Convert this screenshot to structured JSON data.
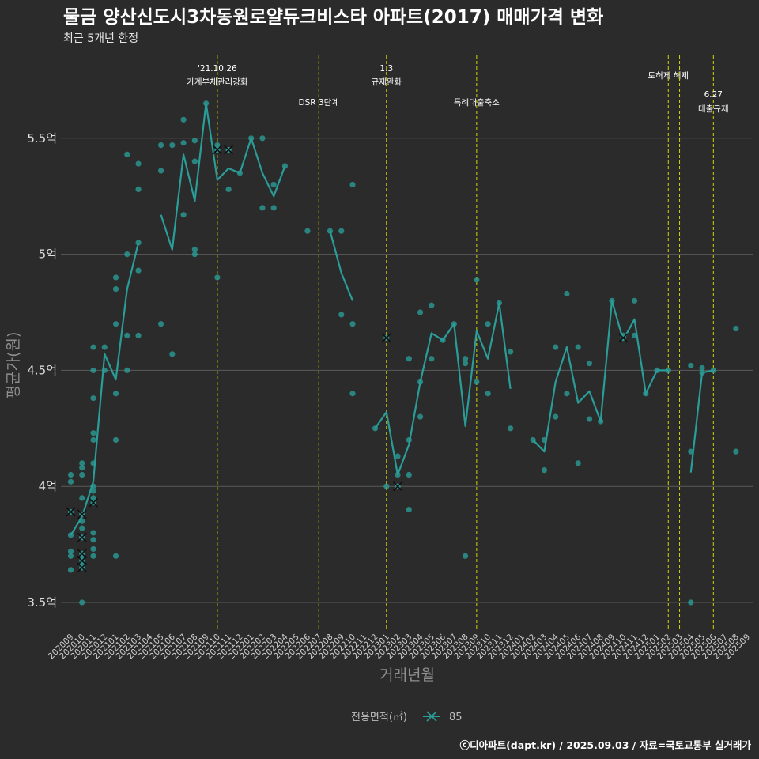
{
  "title": "물금 양산신도시3차동원로얄듀크비스타 아파트(2017) 매매가격 변화",
  "subtitle": "최근 5개년 한정",
  "caption": "ⓒ디아파트(dapt.kr) / 2025.09.03 / 자료=국토교통부 실거래가",
  "legend": {
    "title": "전용면적(㎡)",
    "label": "85"
  },
  "colors": {
    "background": "#2b2b2b",
    "series": "#2a9d99",
    "grid": "#5a5a5a",
    "event_line": "#d4d400"
  },
  "chart_data": {
    "type": "line",
    "xlabel": "거래년월",
    "ylabel": "평균가(원)",
    "ylim": [
      3.4,
      5.8
    ],
    "yticks": [
      {
        "value": 3.5,
        "label": "3.5억"
      },
      {
        "value": 4.0,
        "label": "4억"
      },
      {
        "value": 4.5,
        "label": "4.5억"
      },
      {
        "value": 5.0,
        "label": "5억"
      },
      {
        "value": 5.5,
        "label": "5.5억"
      }
    ],
    "x_categories": [
      "202009",
      "202010",
      "202011",
      "202012",
      "202101",
      "202102",
      "202103",
      "202104",
      "202105",
      "202106",
      "202107",
      "202108",
      "202109",
      "202110",
      "202111",
      "202112",
      "202201",
      "202202",
      "202203",
      "202204",
      "202205",
      "202206",
      "202207",
      "202208",
      "202209",
      "202210",
      "202211",
      "202212",
      "202301",
      "202302",
      "202303",
      "202304",
      "202305",
      "202306",
      "202307",
      "202308",
      "202309",
      "202310",
      "202311",
      "202312",
      "202401",
      "202402",
      "202403",
      "202404",
      "202405",
      "202406",
      "202407",
      "202408",
      "202409",
      "202410",
      "202411",
      "202412",
      "202501",
      "202502",
      "202503",
      "202504",
      "202505",
      "202506",
      "202507",
      "202508",
      "202509"
    ],
    "events": [
      {
        "x": "202110",
        "lines": [
          "'21.10.26",
          "가계부채관리강화"
        ]
      },
      {
        "x": "202207",
        "lines": [
          "DSR 3단계"
        ]
      },
      {
        "x": "202301",
        "lines": [
          "1.3",
          "규제완화"
        ]
      },
      {
        "x": "202309",
        "lines": [
          "특례대출축소"
        ]
      },
      {
        "x": "202502",
        "lines": [
          "토허제 해제"
        ]
      },
      {
        "x": "202503",
        "lines": []
      },
      {
        "x": "202506",
        "lines": [
          "6.27",
          "대출규제"
        ]
      }
    ],
    "series": [
      {
        "name": "85",
        "line_segments": [
          [
            [
              "202009",
              3.79
            ],
            [
              "202010",
              3.87
            ],
            [
              "202011",
              4.02
            ],
            [
              "202012",
              4.57
            ],
            [
              "202101",
              4.46
            ],
            [
              "202102",
              4.85
            ],
            [
              "202103",
              5.05
            ]
          ],
          [
            [
              "202105",
              5.17
            ],
            [
              "202106",
              5.02
            ],
            [
              "202107",
              5.43
            ],
            [
              "202108",
              5.23
            ],
            [
              "202109",
              5.65
            ],
            [
              "202110",
              5.32
            ],
            [
              "202111",
              5.37
            ],
            [
              "202112",
              5.35
            ],
            [
              "202201",
              5.5
            ],
            [
              "202202",
              5.35
            ],
            [
              "202203",
              5.25
            ],
            [
              "202204",
              5.38
            ]
          ],
          [
            [
              "202208",
              5.1
            ],
            [
              "202209",
              4.92
            ],
            [
              "202210",
              4.8
            ]
          ],
          [
            [
              "202212",
              4.25
            ],
            [
              "202301",
              4.32
            ],
            [
              "202302",
              4.05
            ],
            [
              "202303",
              4.18
            ],
            [
              "202304",
              4.45
            ],
            [
              "202305",
              4.66
            ],
            [
              "202306",
              4.63
            ],
            [
              "202307",
              4.7
            ],
            [
              "202308",
              4.26
            ],
            [
              "202309",
              4.67
            ],
            [
              "202310",
              4.55
            ],
            [
              "202311",
              4.79
            ],
            [
              "202312",
              4.42
            ]
          ],
          [
            [
              "202402",
              4.2
            ],
            [
              "202403",
              4.15
            ],
            [
              "202404",
              4.45
            ],
            [
              "202405",
              4.6
            ],
            [
              "202406",
              4.36
            ],
            [
              "202407",
              4.41
            ],
            [
              "202408",
              4.28
            ],
            [
              "202409",
              4.8
            ],
            [
              "202410",
              4.63
            ],
            [
              "202411",
              4.72
            ],
            [
              "202412",
              4.4
            ],
            [
              "202501",
              4.5
            ],
            [
              "202502",
              4.5
            ]
          ],
          [
            [
              "202504",
              4.06
            ],
            [
              "202505",
              4.49
            ],
            [
              "202506",
              4.5
            ]
          ]
        ],
        "points": [
          [
            "202009",
            4.05
          ],
          [
            "202009",
            4.02
          ],
          [
            "202009",
            3.79
          ],
          [
            "202009",
            3.72
          ],
          [
            "202009",
            3.7
          ],
          [
            "202009",
            3.64
          ],
          [
            "202010",
            4.1
          ],
          [
            "202010",
            4.08
          ],
          [
            "202010",
            4.05
          ],
          [
            "202010",
            3.95
          ],
          [
            "202010",
            3.85
          ],
          [
            "202010",
            3.82
          ],
          [
            "202010",
            3.78
          ],
          [
            "202010",
            3.7
          ],
          [
            "202010",
            3.67
          ],
          [
            "202010",
            3.5
          ],
          [
            "202011",
            4.6
          ],
          [
            "202011",
            4.5
          ],
          [
            "202011",
            4.38
          ],
          [
            "202011",
            4.23
          ],
          [
            "202011",
            4.2
          ],
          [
            "202011",
            4.1
          ],
          [
            "202011",
            4.0
          ],
          [
            "202011",
            3.98
          ],
          [
            "202011",
            3.95
          ],
          [
            "202011",
            3.8
          ],
          [
            "202011",
            3.77
          ],
          [
            "202011",
            3.73
          ],
          [
            "202011",
            3.7
          ],
          [
            "202012",
            4.6
          ],
          [
            "202012",
            4.5
          ],
          [
            "202101",
            4.9
          ],
          [
            "202101",
            4.85
          ],
          [
            "202101",
            4.7
          ],
          [
            "202101",
            4.4
          ],
          [
            "202101",
            4.2
          ],
          [
            "202101",
            3.7
          ],
          [
            "202102",
            5.43
          ],
          [
            "202102",
            5.0
          ],
          [
            "202102",
            4.65
          ],
          [
            "202102",
            4.5
          ],
          [
            "202103",
            5.39
          ],
          [
            "202103",
            5.28
          ],
          [
            "202103",
            5.05
          ],
          [
            "202103",
            4.93
          ],
          [
            "202103",
            4.65
          ],
          [
            "202105",
            5.47
          ],
          [
            "202105",
            5.36
          ],
          [
            "202105",
            4.7
          ],
          [
            "202106",
            5.47
          ],
          [
            "202106",
            4.57
          ],
          [
            "202107",
            5.58
          ],
          [
            "202107",
            5.48
          ],
          [
            "202107",
            5.17
          ],
          [
            "202108",
            5.49
          ],
          [
            "202108",
            5.4
          ],
          [
            "202108",
            5.02
          ],
          [
            "202108",
            5.0
          ],
          [
            "202109",
            5.65
          ],
          [
            "202110",
            5.47
          ],
          [
            "202110",
            5.45
          ],
          [
            "202110",
            4.9
          ],
          [
            "202111",
            5.45
          ],
          [
            "202111",
            5.28
          ],
          [
            "202112",
            5.35
          ],
          [
            "202201",
            5.5
          ],
          [
            "202202",
            5.5
          ],
          [
            "202202",
            5.2
          ],
          [
            "202203",
            5.3
          ],
          [
            "202203",
            5.2
          ],
          [
            "202204",
            5.38
          ],
          [
            "202206",
            5.1
          ],
          [
            "202208",
            5.1
          ],
          [
            "202209",
            5.1
          ],
          [
            "202209",
            4.74
          ],
          [
            "202210",
            5.3
          ],
          [
            "202210",
            4.7
          ],
          [
            "202210",
            4.4
          ],
          [
            "202212",
            4.25
          ],
          [
            "202301",
            4.0
          ],
          [
            "202302",
            4.13
          ],
          [
            "202302",
            4.05
          ],
          [
            "202302",
            4.0
          ],
          [
            "202303",
            4.55
          ],
          [
            "202303",
            4.2
          ],
          [
            "202303",
            4.05
          ],
          [
            "202303",
            3.9
          ],
          [
            "202304",
            4.75
          ],
          [
            "202304",
            4.45
          ],
          [
            "202304",
            4.3
          ],
          [
            "202305",
            4.78
          ],
          [
            "202305",
            4.55
          ],
          [
            "202306",
            4.63
          ],
          [
            "202307",
            4.7
          ],
          [
            "202308",
            4.55
          ],
          [
            "202308",
            4.53
          ],
          [
            "202308",
            3.7
          ],
          [
            "202309",
            4.89
          ],
          [
            "202309",
            4.45
          ],
          [
            "202310",
            4.7
          ],
          [
            "202310",
            4.4
          ],
          [
            "202311",
            4.79
          ],
          [
            "202312",
            4.58
          ],
          [
            "202312",
            4.25
          ],
          [
            "202402",
            4.2
          ],
          [
            "202403",
            4.2
          ],
          [
            "202403",
            4.07
          ],
          [
            "202404",
            4.6
          ],
          [
            "202404",
            4.3
          ],
          [
            "202405",
            4.83
          ],
          [
            "202405",
            4.4
          ],
          [
            "202406",
            4.6
          ],
          [
            "202406",
            4.1
          ],
          [
            "202407",
            4.53
          ],
          [
            "202407",
            4.29
          ],
          [
            "202408",
            4.28
          ],
          [
            "202409",
            4.8
          ],
          [
            "202410",
            4.65
          ],
          [
            "202411",
            4.8
          ],
          [
            "202411",
            4.65
          ],
          [
            "202412",
            4.4
          ],
          [
            "202501",
            4.5
          ],
          [
            "202502",
            4.5
          ],
          [
            "202504",
            4.52
          ],
          [
            "202504",
            4.15
          ],
          [
            "202504",
            3.5
          ],
          [
            "202505",
            4.51
          ],
          [
            "202505",
            4.49
          ],
          [
            "202506",
            4.5
          ],
          [
            "202508",
            4.68
          ],
          [
            "202508",
            4.15
          ]
        ],
        "crossed_points": [
          [
            "202009",
            3.89
          ],
          [
            "202010",
            3.88
          ],
          [
            "202010",
            3.78
          ],
          [
            "202010",
            3.71
          ],
          [
            "202010",
            3.68
          ],
          [
            "202010",
            3.65
          ],
          [
            "202011",
            3.93
          ],
          [
            "202110",
            5.45
          ],
          [
            "202111",
            5.45
          ],
          [
            "202301",
            4.64
          ],
          [
            "202302",
            4.0
          ],
          [
            "202410",
            4.64
          ]
        ]
      }
    ]
  }
}
